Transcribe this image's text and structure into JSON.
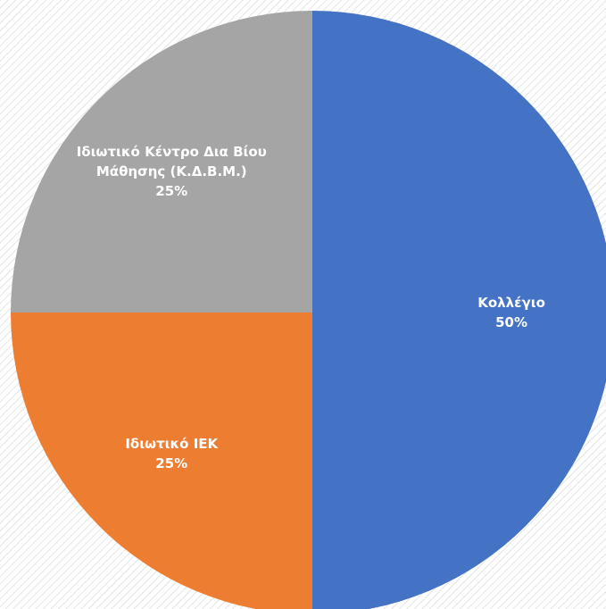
{
  "chart_data": {
    "type": "pie",
    "categories": [
      "Κολλέγιο",
      "Ιδιωτικό ΙΕΚ",
      "Ιδιωτικό Κέντρο Δια Βίου Μάθησης (Κ.Δ.Β.Μ.)"
    ],
    "values": [
      50,
      25,
      25
    ],
    "value_labels": [
      "50%",
      "25%",
      "25%"
    ],
    "colors": [
      "#4472c4",
      "#ed7d31",
      "#a5a5a5"
    ]
  }
}
